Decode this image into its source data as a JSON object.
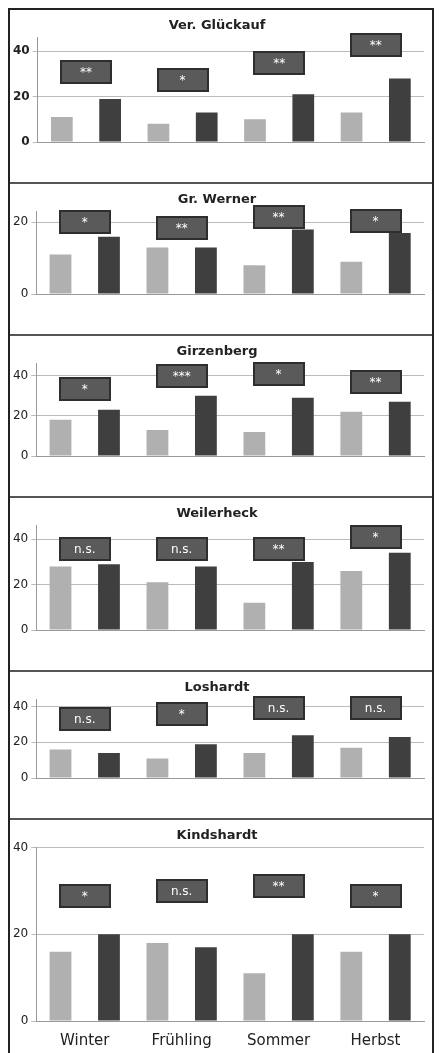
{
  "chart_data": [
    {
      "type": "bar",
      "title": "Ver. Glückauf",
      "categories": [
        null,
        null,
        null,
        null
      ],
      "series": [
        {
          "color": "#b0b0b0",
          "values": [
            11,
            8,
            10,
            13
          ]
        },
        {
          "color": "#3f3f3f",
          "values": [
            19,
            13,
            21,
            28
          ]
        }
      ],
      "ylim": [
        0,
        46
      ],
      "yticks": [
        0,
        20,
        40
      ],
      "grid": "y",
      "legend": false,
      "tick_labels": "y",
      "annotations": [
        "**",
        "*",
        "**",
        "**"
      ]
    },
    {
      "type": "bar",
      "title": "Gr. Werner",
      "categories": [
        null,
        null,
        null,
        null
      ],
      "series": [
        {
          "color": "#b0b0b0",
          "values": [
            11,
            13,
            8,
            9
          ]
        },
        {
          "color": "#3f3f3f",
          "values": [
            16,
            13,
            18,
            17
          ]
        }
      ],
      "ylim": [
        0,
        23
      ],
      "yticks": [
        0,
        20
      ],
      "grid": "y",
      "legend": false,
      "tick_labels": "y",
      "annotations": [
        "*",
        "**",
        "**",
        "*"
      ]
    },
    {
      "type": "bar",
      "title": "Girzenberg",
      "categories": [
        null,
        null,
        null,
        null
      ],
      "series": [
        {
          "color": "#b0b0b0",
          "values": [
            18,
            13,
            12,
            22
          ]
        },
        {
          "color": "#3f3f3f",
          "values": [
            23,
            30,
            29,
            27
          ]
        }
      ],
      "ylim": [
        0,
        46
      ],
      "yticks": [
        0,
        20,
        40
      ],
      "grid": "y",
      "legend": false,
      "tick_labels": "y",
      "annotations": [
        "*",
        "***",
        "*",
        "**"
      ]
    },
    {
      "type": "bar",
      "title": "Weilerheck",
      "categories": [
        null,
        null,
        null,
        null
      ],
      "series": [
        {
          "color": "#b0b0b0",
          "values": [
            28,
            21,
            12,
            26
          ]
        },
        {
          "color": "#3f3f3f",
          "values": [
            29,
            28,
            30,
            34
          ]
        }
      ],
      "ylim": [
        0,
        46
      ],
      "yticks": [
        0,
        20,
        40
      ],
      "grid": "y",
      "legend": false,
      "tick_labels": "y",
      "annotations": [
        "n.s.",
        "n.s.",
        "**",
        "*"
      ]
    },
    {
      "type": "bar",
      "title": "Loshardt",
      "categories": [
        null,
        null,
        null,
        null
      ],
      "series": [
        {
          "color": "#b0b0b0",
          "values": [
            16,
            11,
            14,
            17
          ]
        },
        {
          "color": "#3f3f3f",
          "values": [
            14,
            19,
            24,
            23
          ]
        }
      ],
      "ylim": [
        0,
        44
      ],
      "yticks": [
        0,
        20,
        40
      ],
      "grid": "y",
      "legend": false,
      "tick_labels": "y",
      "annotations": [
        "n.s.",
        "*",
        "n.s.",
        "n.s."
      ]
    },
    {
      "type": "bar",
      "title": "Kindshardt",
      "categories": [
        "Winter",
        "Frühling",
        "Sommer",
        "Herbst"
      ],
      "series": [
        {
          "color": "#b0b0b0",
          "values": [
            16,
            18,
            11,
            16
          ]
        },
        {
          "color": "#3f3f3f",
          "values": [
            20,
            17,
            20,
            20
          ]
        }
      ],
      "ylim": [
        0,
        40
      ],
      "yticks": [
        0,
        20,
        40
      ],
      "grid": "y",
      "legend": false,
      "annotations": [
        "*",
        "n.s.",
        "**",
        "*"
      ]
    }
  ]
}
